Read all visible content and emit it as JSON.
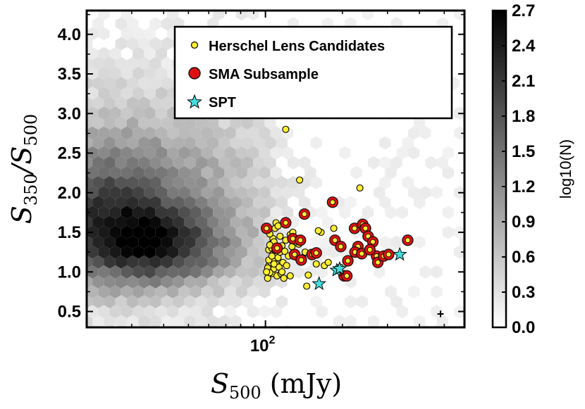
{
  "chart_data": {
    "type": "scatter",
    "title": "",
    "xlabel": "S500 (mJy)",
    "ylabel": "S350/S500",
    "xscale": "log",
    "xlim": [
      20,
      600
    ],
    "ylim": [
      0.3,
      4.3
    ],
    "x_ticks": [
      100
    ],
    "x_tick_labels": [
      "10^2"
    ],
    "y_ticks": [
      0.5,
      1.0,
      1.5,
      2.0,
      2.5,
      3.0,
      3.5,
      4.0
    ],
    "y_tick_labels": [
      "0.5",
      "1.0",
      "1.5",
      "2.0",
      "2.5",
      "3.0",
      "3.5",
      "4.0"
    ],
    "background": "hexbin density of all Herschel sources (grayscale)",
    "colorbar": {
      "label": "log10(N)",
      "range": [
        0.0,
        2.7
      ],
      "ticks": [
        0.0,
        0.3,
        0.6,
        0.9,
        1.2,
        1.5,
        1.8,
        2.1,
        2.4,
        2.7
      ],
      "tick_labels": [
        "0.0",
        "0.3",
        "0.6",
        "0.9",
        "1.2",
        "1.5",
        "1.8",
        "2.1",
        "2.4",
        "2.7"
      ]
    },
    "legend": {
      "placement": "top-right",
      "entries": [
        "Herschel Lens Candidates",
        "SMA Subsample",
        "SPT"
      ]
    },
    "series": [
      {
        "name": "Herschel Lens Candidates",
        "marker": "circle",
        "color": "#ffee33",
        "edge": "#000000",
        "points": [
          [
            103,
            1.08
          ],
          [
            104,
            1.02
          ],
          [
            105,
            1.12
          ],
          [
            106,
            0.98
          ],
          [
            102,
            1.05
          ],
          [
            107,
            1.15
          ],
          [
            108,
            1.04
          ],
          [
            109,
            1.22
          ],
          [
            110,
            1.1
          ],
          [
            111,
            0.95
          ],
          [
            103,
            1.28
          ],
          [
            105,
            1.35
          ],
          [
            107,
            1.42
          ],
          [
            109,
            1.55
          ],
          [
            104,
            1.48
          ],
          [
            106,
            1.3
          ],
          [
            112,
            1.18
          ],
          [
            113,
            1.06
          ],
          [
            114,
            1.25
          ],
          [
            115,
            0.98
          ],
          [
            116,
            1.33
          ],
          [
            117,
            1.12
          ],
          [
            118,
            0.92
          ],
          [
            119,
            1.26
          ],
          [
            120,
            1.4
          ],
          [
            102,
            0.92
          ],
          [
            104,
            0.99
          ],
          [
            108,
            1.38
          ],
          [
            110,
            1.62
          ],
          [
            112,
            1.58
          ],
          [
            121,
            1.08
          ],
          [
            123,
            1.2
          ],
          [
            125,
            1.47
          ],
          [
            127,
            1.32
          ],
          [
            130,
            1.22
          ],
          [
            133,
            1.18
          ],
          [
            135,
            1.35
          ],
          [
            140,
            1.18
          ],
          [
            143,
            1.25
          ],
          [
            147,
            0.96
          ],
          [
            153,
            1.2
          ],
          [
            158,
            1.1
          ],
          [
            165,
            1.5
          ],
          [
            170,
            1.08
          ],
          [
            185,
            1.55
          ],
          [
            196,
            1.06
          ],
          [
            120,
            2.8
          ],
          [
            136,
            2.16
          ],
          [
            234,
            2.06
          ],
          [
            101,
            1.0
          ],
          [
            103,
            1.15
          ],
          [
            106,
            1.2
          ],
          [
            108,
            1.1
          ],
          [
            111,
            1.3
          ],
          [
            114,
            1.45
          ],
          [
            116,
            1.0
          ],
          [
            125,
            0.95
          ],
          [
            128,
            1.5
          ],
          [
            131,
            1.38
          ],
          [
            145,
            0.82
          ],
          [
            161,
            1.52
          ],
          [
            176,
            1.12
          ],
          [
            104,
            1.34
          ],
          [
            109,
            1.27
          ]
        ]
      },
      {
        "name": "SMA Subsample",
        "marker": "circle",
        "color": "#dd1111",
        "edge": "#111111",
        "inner": "#ffee33",
        "points": [
          [
            101,
            1.55
          ],
          [
            111,
            1.3
          ],
          [
            120,
            1.62
          ],
          [
            128,
            1.42
          ],
          [
            130,
            1.22
          ],
          [
            137,
            1.4
          ],
          [
            142,
            1.73
          ],
          [
            152,
            1.22
          ],
          [
            158,
            1.24
          ],
          [
            183,
            1.88
          ],
          [
            187,
            1.4
          ],
          [
            197,
            1.32
          ],
          [
            203,
            0.95
          ],
          [
            208,
            0.95
          ],
          [
            223,
            1.55
          ],
          [
            230,
            1.32
          ],
          [
            240,
            1.6
          ],
          [
            246,
            1.55
          ],
          [
            252,
            1.45
          ],
          [
            263,
            1.38
          ],
          [
            272,
            1.2
          ],
          [
            275,
            1.12
          ],
          [
            290,
            1.2
          ],
          [
            303,
            1.22
          ],
          [
            210,
            1.14
          ],
          [
            224,
            1.25
          ],
          [
            238,
            1.23
          ],
          [
            256,
            1.28
          ],
          [
            360,
            1.4
          ],
          [
            138,
            1.15
          ]
        ]
      },
      {
        "name": "SPT",
        "marker": "star",
        "color": "#44dddd",
        "edge": "#000000",
        "points": [
          [
            162,
            0.85
          ],
          [
            190,
            1.02
          ],
          [
            195,
            1.04
          ],
          [
            335,
            1.22
          ]
        ]
      }
    ]
  }
}
